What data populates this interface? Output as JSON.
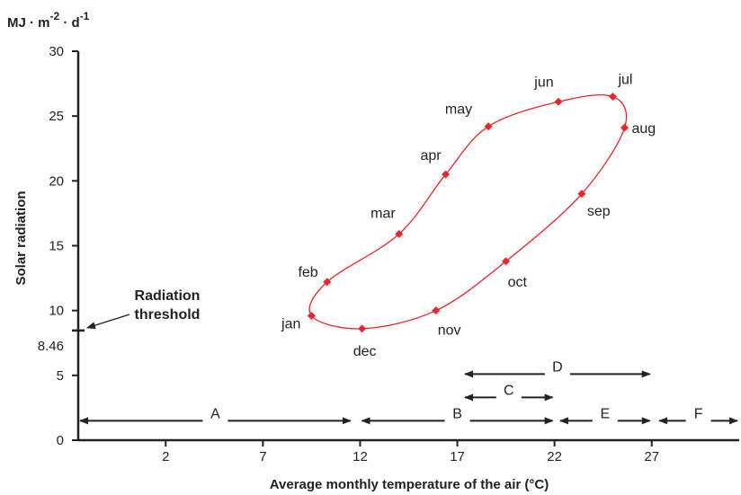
{
  "chart_data": {
    "type": "scatter",
    "title": "",
    "unit_label": {
      "base": "MJ · m",
      "exp1": "-2",
      "mid": " · d",
      "exp2": "-1"
    },
    "xlabel": "Average monthly temperature of the air (°C)",
    "ylabel": "Solar radiation",
    "xlim": [
      -2.5,
      31.5
    ],
    "ylim": [
      0,
      30
    ],
    "x_ticks": [
      2,
      7,
      12,
      17,
      22,
      27
    ],
    "y_ticks": [
      0,
      5,
      10,
      15,
      20,
      25,
      30
    ],
    "line_color": "#e8262b",
    "marker_color": "#e8262b",
    "series": [
      {
        "points": [
          {
            "month": "jan",
            "x": 9.5,
            "y": 9.6
          },
          {
            "month": "feb",
            "x": 10.3,
            "y": 12.2
          },
          {
            "month": "mar",
            "x": 14.0,
            "y": 15.9
          },
          {
            "month": "apr",
            "x": 16.4,
            "y": 20.5
          },
          {
            "month": "may",
            "x": 18.6,
            "y": 24.2
          },
          {
            "month": "jun",
            "x": 22.2,
            "y": 26.1
          },
          {
            "month": "jul",
            "x": 25.0,
            "y": 26.5
          },
          {
            "month": "aug",
            "x": 25.6,
            "y": 24.1
          },
          {
            "month": "sep",
            "x": 23.4,
            "y": 19.0
          },
          {
            "month": "oct",
            "x": 19.5,
            "y": 13.8
          },
          {
            "month": "nov",
            "x": 15.9,
            "y": 10.0
          },
          {
            "month": "dec",
            "x": 12.1,
            "y": 8.6
          }
        ]
      }
    ],
    "threshold": {
      "value": 8.46,
      "value_label": "8.46",
      "label_line1": "Radiation",
      "label_line2": "threshold"
    },
    "ranges": [
      {
        "label": "A",
        "x0": -2.5,
        "x1": 11.6,
        "y": 1.5
      },
      {
        "label": "B",
        "x0": 12.0,
        "x1": 22.0,
        "y": 1.5
      },
      {
        "label": "C",
        "x0": 17.3,
        "x1": 22.0,
        "y": 3.3
      },
      {
        "label": "D",
        "x0": 17.3,
        "x1": 27.0,
        "y": 5.1
      },
      {
        "label": "E",
        "x0": 22.2,
        "x1": 27.0,
        "y": 1.5
      },
      {
        "label": "F",
        "x0": 27.3,
        "x1": 31.5,
        "y": 1.5
      }
    ]
  }
}
